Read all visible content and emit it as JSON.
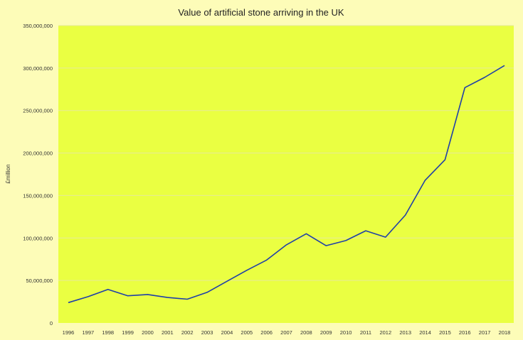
{
  "chart_data": {
    "type": "line",
    "title": "Value of artificial stone arriving in the UK",
    "xlabel": "",
    "ylabel": "£million",
    "categories": [
      "1996",
      "1997",
      "1998",
      "1999",
      "2000",
      "2001",
      "2002",
      "2003",
      "2004",
      "2005",
      "2006",
      "2007",
      "2008",
      "2009",
      "2010",
      "2011",
      "2012",
      "2013",
      "2014",
      "2015",
      "2016",
      "2017",
      "2018"
    ],
    "series": [
      {
        "values": [
          24000000,
          31000000,
          39500000,
          32000000,
          33500000,
          30000000,
          28000000,
          36000000,
          49000000,
          62000000,
          74000000,
          92000000,
          105000000,
          91000000,
          97000000,
          108500000,
          101000000,
          127000000,
          168000000,
          192000000,
          277000000,
          289000000,
          303000000
        ]
      }
    ],
    "ylim": [
      0,
      350000000
    ],
    "yticks": [
      0,
      50000000,
      100000000,
      150000000,
      200000000,
      250000000,
      300000000,
      350000000
    ],
    "ytick_labels": [
      "0",
      "50,000,000",
      "100,000,000",
      "150,000,000",
      "200,000,000",
      "250,000,000",
      "300,000,000",
      "350,000,000"
    ],
    "grid": true,
    "legend": "none",
    "colors": {
      "page_background": "#fdfcb8",
      "plot_background": "#eaff42",
      "line": "#1f3fa8",
      "grid": "#e6ea9a"
    }
  }
}
